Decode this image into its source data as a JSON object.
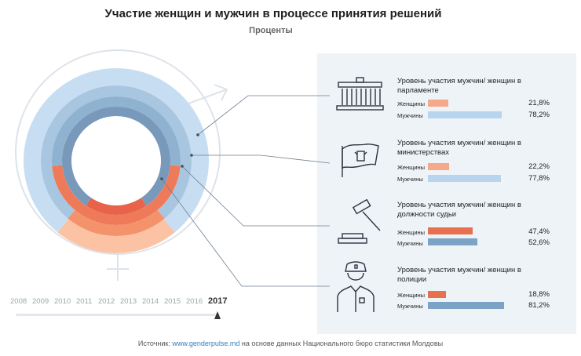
{
  "title": "Участие женщин и мужчин в процессе принятия решений",
  "subtitle": "Проценты",
  "colors": {
    "women_bar": "#f5a98a",
    "men_bar": "#b9d4ee",
    "women_bar_dark": "#e8704f",
    "men_bar_dark": "#7aa3c6",
    "ring_women": [
      "#fbc3a3",
      "#f4926c",
      "#ef7a5a",
      "#e8634a"
    ],
    "ring_men": [
      "#c7def2",
      "#a9c6e1",
      "#8fb2d1",
      "#7899b9"
    ],
    "panel": "#eef3f8"
  },
  "chart_data": {
    "type": "bar",
    "orientation": "horizontal",
    "unit": "%",
    "year": "2017",
    "categories": [
      "Уровень участия мужчин/ женщин в парламенте",
      "Уровень участия мужчин/ женщин в министерствах",
      "Уровень участия мужчин/ женщин в должности судьи",
      "Уровень участия мужчин/ женщин в полиции"
    ],
    "series": [
      {
        "name": "Женщины",
        "values": [
          21.8,
          22.2,
          47.4,
          18.8
        ],
        "labels": [
          "21,8%",
          "22,2%",
          "47,4%",
          "18,8%"
        ]
      },
      {
        "name": "Мужчины",
        "values": [
          78.2,
          77.8,
          52.6,
          81.2
        ],
        "labels": [
          "78,2%",
          "77,8%",
          "52,6%",
          "81,2%"
        ]
      }
    ],
    "xlim": [
      0,
      100
    ]
  },
  "panel_items": [
    {
      "label": "Уровень участия мужчин/ женщин в парламенте",
      "icon": "parliament-icon"
    },
    {
      "label": "Уровень участия мужчин/ женщин в министерствах",
      "icon": "flag-icon"
    },
    {
      "label": "Уровень участия мужчин/ женщин в должности судьи",
      "icon": "gavel-icon"
    },
    {
      "label": "Уровень участия мужчин/ женщин в полиции",
      "icon": "police-officer-icon"
    }
  ],
  "timeline": {
    "years": [
      "2008",
      "2009",
      "2010",
      "2011",
      "2012",
      "2013",
      "2014",
      "2015",
      "2016",
      "2017"
    ],
    "selected": "2017"
  },
  "source": {
    "prefix": "Источник:",
    "link": "www.genderpulse.md",
    "suffix": "на основе данных Национального бюро статистики Молдовы"
  }
}
